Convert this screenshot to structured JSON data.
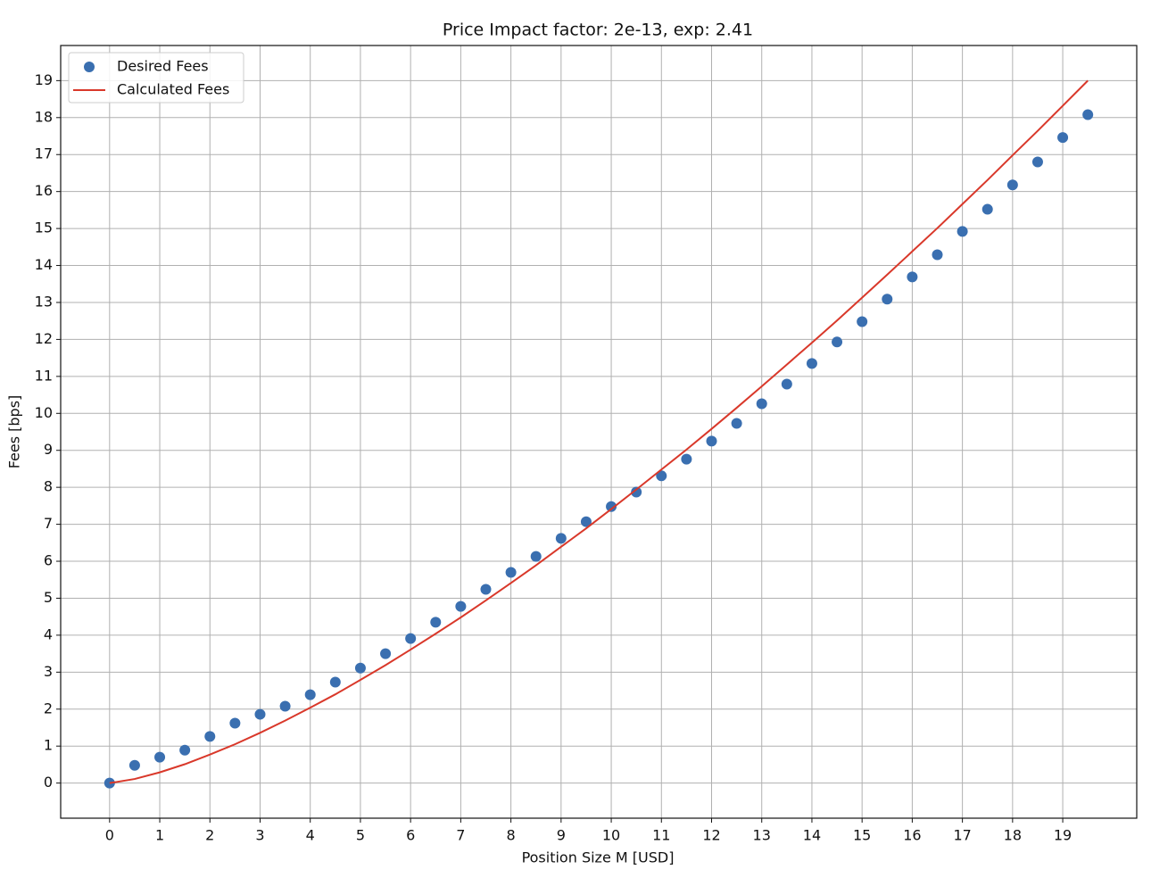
{
  "chart_data": {
    "type": "scatter",
    "title": "Price Impact factor: 2e-13, exp: 2.41",
    "x_label": "Position Size M [USD]",
    "y_label": "Fees [bps]",
    "x": [
      0,
      0.5,
      1,
      1.5,
      2,
      2.5,
      3,
      3.5,
      4,
      4.5,
      5,
      5.5,
      6,
      6.5,
      7,
      7.5,
      8,
      8.5,
      9,
      9.5,
      10,
      10.5,
      11,
      11.5,
      12,
      12.5,
      13,
      13.5,
      14,
      14.5,
      15,
      15.5,
      16,
      16.5,
      17,
      17.5,
      18,
      18.5,
      19,
      19.5
    ],
    "series": [
      {
        "name": "Desired Fees",
        "type": "scatter",
        "color": "#3a6fb0",
        "values": [
          0,
          0.48,
          0.7,
          0.89,
          1.26,
          1.62,
          1.86,
          2.08,
          2.39,
          2.73,
          3.11,
          3.5,
          3.91,
          4.35,
          4.78,
          5.24,
          5.7,
          6.13,
          6.62,
          7.07,
          7.48,
          7.87,
          8.31,
          8.76,
          9.25,
          9.73,
          10.26,
          10.79,
          11.35,
          11.93,
          12.48,
          13.09,
          13.69,
          14.29,
          14.92,
          15.52,
          16.18,
          16.8,
          17.46,
          18.08
        ]
      },
      {
        "name": "Calculated Fees",
        "type": "line",
        "color": "#d9382a",
        "values": [
          0,
          0.11,
          0.29,
          0.51,
          0.77,
          1.05,
          1.36,
          1.69,
          2.04,
          2.4,
          2.79,
          3.19,
          3.61,
          4.04,
          4.48,
          4.94,
          5.41,
          5.89,
          6.39,
          6.89,
          7.41,
          7.94,
          8.48,
          9.02,
          9.58,
          10.15,
          10.73,
          11.32,
          11.91,
          12.51,
          13.13,
          13.75,
          14.38,
          15.01,
          15.66,
          16.31,
          16.98,
          17.64,
          18.32,
          19.0
        ]
      }
    ],
    "xlim": [
      -0.975,
      20.475
    ],
    "ylim": [
      -0.95,
      19.95
    ],
    "xticks": [
      0,
      1,
      2,
      3,
      4,
      5,
      6,
      7,
      8,
      9,
      10,
      11,
      12,
      13,
      14,
      15,
      16,
      17,
      18,
      19
    ],
    "yticks": [
      0,
      1,
      2,
      3,
      4,
      5,
      6,
      7,
      8,
      9,
      10,
      11,
      12,
      13,
      14,
      15,
      16,
      17,
      18,
      19
    ],
    "grid": true,
    "legend": "upper left"
  }
}
